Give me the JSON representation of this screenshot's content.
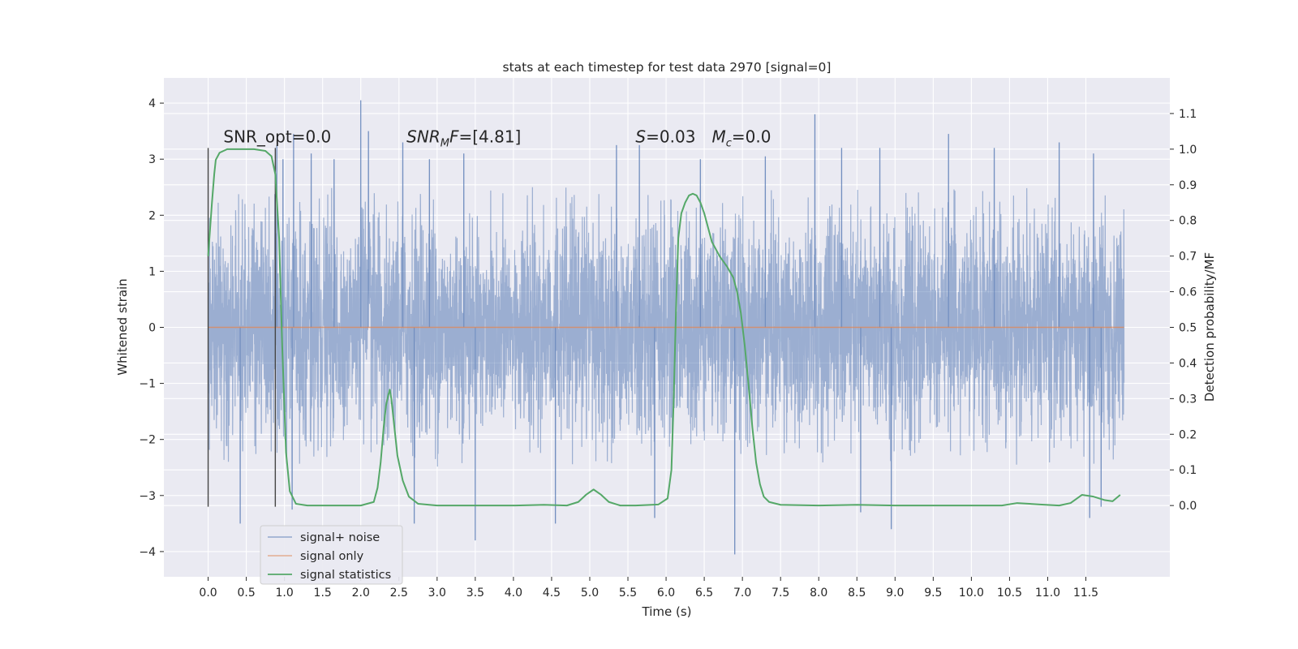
{
  "chart_data": {
    "type": "line",
    "title": "stats at each timestep for test data 2970 [signal=0]",
    "xlabel": "Time (s)",
    "ylabel_left": "Whitened strain",
    "ylabel_right": "Detection probability/MF",
    "xlim": [
      -0.58,
      12.6
    ],
    "ylim_left": [
      -4.45,
      4.45
    ],
    "ylim_right": [
      -0.2,
      1.2
    ],
    "x_ticks": [
      0.0,
      0.5,
      1.0,
      1.5,
      2.0,
      2.5,
      3.0,
      3.5,
      4.0,
      4.5,
      5.0,
      5.5,
      6.0,
      6.5,
      7.0,
      7.5,
      8.0,
      8.5,
      9.0,
      9.5,
      10.0,
      10.5,
      11.0,
      11.5
    ],
    "x_tick_labels": [
      "0.0",
      "0.5",
      "1.0",
      "1.5",
      "2.0",
      "2.5",
      "3.0",
      "3.5",
      "4.0",
      "4.5",
      "5.0",
      "5.5",
      "6.0",
      "6.5",
      "7.0",
      "7.5",
      "8.0",
      "8.5",
      "9.0",
      "9.5",
      "10.0",
      "10.5",
      "11.0",
      "11.5"
    ],
    "y_left_ticks": [
      -4,
      -3,
      -2,
      -1,
      0,
      1,
      2,
      3,
      4
    ],
    "y_left_tick_labels": [
      "−4",
      "−3",
      "−2",
      "−1",
      "0",
      "1",
      "2",
      "3",
      "4"
    ],
    "y_right_ticks": [
      0.0,
      0.1,
      0.2,
      0.3,
      0.4,
      0.5,
      0.6,
      0.7,
      0.8,
      0.9,
      1.0,
      1.1
    ],
    "y_right_tick_labels": [
      "0.0",
      "0.1",
      "0.2",
      "0.3",
      "0.4",
      "0.5",
      "0.6",
      "0.7",
      "0.8",
      "0.9",
      "1.0",
      "1.1"
    ],
    "grid": true,
    "legend_position": "lower-left",
    "series": [
      {
        "name": "signal+ noise",
        "color": "#4c72b0",
        "axis": "left",
        "x_range": [
          0.0,
          12.0
        ],
        "typical_extent": [
          -1.9,
          1.9
        ],
        "peaks": [
          {
            "x": 0.9,
            "y": 3.25
          },
          {
            "x": 0.98,
            "y": 3.0
          },
          {
            "x": 1.12,
            "y": 3.45
          },
          {
            "x": 1.35,
            "y": 3.1
          },
          {
            "x": 1.65,
            "y": 3.0
          },
          {
            "x": 2.0,
            "y": 4.05
          },
          {
            "x": 2.1,
            "y": 3.5
          },
          {
            "x": 2.55,
            "y": 3.3
          },
          {
            "x": 2.9,
            "y": 3.0
          },
          {
            "x": 3.35,
            "y": 3.1
          },
          {
            "x": 5.35,
            "y": 3.25
          },
          {
            "x": 5.65,
            "y": 3.25
          },
          {
            "x": 6.45,
            "y": 3.0
          },
          {
            "x": 7.3,
            "y": 3.05
          },
          {
            "x": 7.95,
            "y": 3.8
          },
          {
            "x": 8.3,
            "y": 3.2
          },
          {
            "x": 8.8,
            "y": 3.2
          },
          {
            "x": 9.7,
            "y": 3.45
          },
          {
            "x": 10.3,
            "y": 3.2
          },
          {
            "x": 11.15,
            "y": 3.3
          },
          {
            "x": 11.6,
            "y": 3.1
          },
          {
            "x": 0.42,
            "y": -3.5
          },
          {
            "x": 1.1,
            "y": -3.25
          },
          {
            "x": 2.7,
            "y": -3.5
          },
          {
            "x": 3.5,
            "y": -3.8
          },
          {
            "x": 4.55,
            "y": -3.5
          },
          {
            "x": 5.85,
            "y": -3.4
          },
          {
            "x": 6.9,
            "y": -4.05
          },
          {
            "x": 8.55,
            "y": -3.3
          },
          {
            "x": 8.95,
            "y": -3.6
          },
          {
            "x": 11.55,
            "y": -3.4
          },
          {
            "x": 11.7,
            "y": -3.2
          }
        ]
      },
      {
        "name": "signal only",
        "color": "#dd8452",
        "axis": "left",
        "x": [
          0.0,
          12.0
        ],
        "y": [
          0.0,
          0.0
        ]
      },
      {
        "name": "signal statistics",
        "color": "#55a868",
        "axis": "right",
        "x": [
          0.0,
          0.05,
          0.08,
          0.1,
          0.15,
          0.25,
          0.4,
          0.6,
          0.75,
          0.83,
          0.88,
          0.93,
          0.97,
          1.02,
          1.07,
          1.15,
          1.3,
          1.6,
          2.0,
          2.17,
          2.22,
          2.26,
          2.3,
          2.33,
          2.36,
          2.38,
          2.4,
          2.43,
          2.48,
          2.55,
          2.63,
          2.75,
          3.0,
          3.5,
          4.0,
          4.4,
          4.7,
          4.85,
          4.95,
          5.05,
          5.15,
          5.25,
          5.4,
          5.6,
          5.9,
          6.02,
          6.07,
          6.1,
          6.13,
          6.16,
          6.2,
          6.25,
          6.3,
          6.35,
          6.4,
          6.45,
          6.5,
          6.55,
          6.6,
          6.7,
          6.8,
          6.88,
          6.93,
          6.98,
          7.03,
          7.08,
          7.13,
          7.18,
          7.23,
          7.28,
          7.35,
          7.5,
          8.0,
          8.5,
          9.0,
          9.5,
          10.0,
          10.4,
          10.6,
          10.9,
          11.15,
          11.3,
          11.45,
          11.6,
          11.75,
          11.85,
          11.95
        ],
        "y": [
          0.7,
          0.85,
          0.93,
          0.97,
          0.99,
          1.0,
          1.0,
          1.0,
          0.995,
          0.98,
          0.93,
          0.75,
          0.45,
          0.15,
          0.04,
          0.005,
          0.0,
          0.0,
          0.0,
          0.01,
          0.05,
          0.12,
          0.22,
          0.28,
          0.31,
          0.325,
          0.3,
          0.24,
          0.14,
          0.07,
          0.025,
          0.005,
          0.0,
          0.0,
          0.0,
          0.002,
          0.0,
          0.01,
          0.03,
          0.045,
          0.03,
          0.01,
          0.0,
          0.0,
          0.003,
          0.02,
          0.1,
          0.3,
          0.55,
          0.75,
          0.82,
          0.85,
          0.87,
          0.875,
          0.87,
          0.85,
          0.82,
          0.78,
          0.74,
          0.7,
          0.67,
          0.64,
          0.6,
          0.54,
          0.45,
          0.34,
          0.22,
          0.12,
          0.06,
          0.025,
          0.01,
          0.002,
          0.0,
          0.002,
          0.0,
          0.0,
          0.0,
          0.0,
          0.007,
          0.003,
          0.0,
          0.007,
          0.03,
          0.025,
          0.015,
          0.012,
          0.03
        ]
      }
    ],
    "vertical_markers": [
      {
        "x": 0.0,
        "y_range": [
          -3.2,
          3.2
        ],
        "color": "#444444"
      },
      {
        "x": 0.88,
        "y_range": [
          -3.2,
          3.2
        ],
        "color": "#444444"
      }
    ],
    "annotations": [
      {
        "id": "snr-opt",
        "x": 0.2,
        "y": 3.3,
        "plain": "SNR_opt=0.0"
      },
      {
        "id": "snr-mf",
        "x": 2.6,
        "y": 3.3,
        "italic": "SNR",
        "sub": "M",
        "italic2": "F",
        "rest": "=[4.81]"
      },
      {
        "id": "s",
        "x": 5.6,
        "y": 3.3,
        "italic": "S",
        "rest": "=0.03"
      },
      {
        "id": "mc",
        "x": 6.6,
        "y": 3.3,
        "italic": "M",
        "sub": "c",
        "rest": "=0.0"
      }
    ]
  }
}
